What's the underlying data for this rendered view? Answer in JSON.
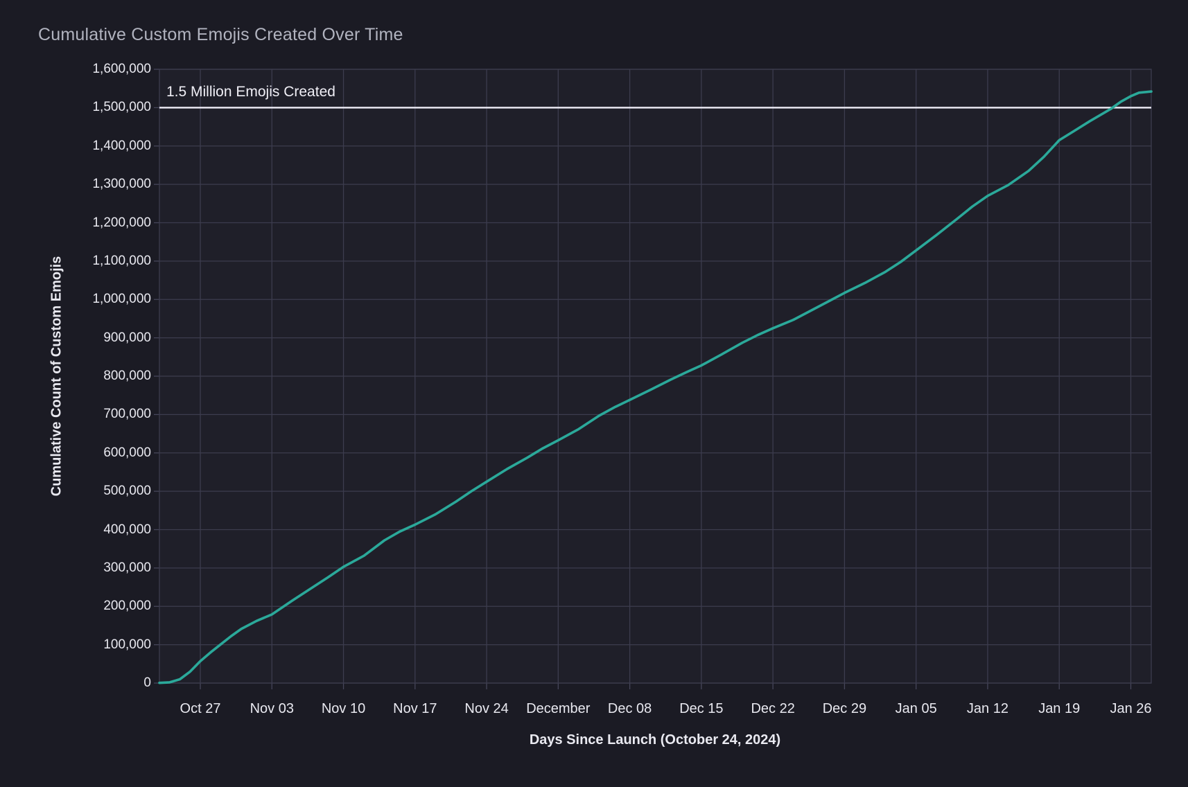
{
  "page": {
    "title": "Cumulative Custom Emojis Created Over Time"
  },
  "colors": {
    "background": "#1b1b24",
    "plot_background": "#1f1f29",
    "grid": "#3c3c4e",
    "plot_border": "#46465a",
    "series_line": "#2ba99a",
    "reference_line": "#e8e6f0",
    "title_text": "#b1b3bf",
    "tick_text": "#e9e9f0",
    "axis_title_text": "#e9e9f0",
    "annotation_text": "#f0eff6"
  },
  "chart_data": {
    "type": "line",
    "title": "Cumulative Custom Emojis Created Over Time",
    "xlabel": "Days Since Launch (October 24, 2024)",
    "ylabel": "Cumulative Count of Custom Emojis",
    "grid": true,
    "legend": "none",
    "ylim": [
      0,
      1600000
    ],
    "x_domain_days": [
      -1,
      96
    ],
    "y_ticks": [
      {
        "value": 0,
        "label": "0"
      },
      {
        "value": 100000,
        "label": "100,000"
      },
      {
        "value": 200000,
        "label": "200,000"
      },
      {
        "value": 300000,
        "label": "300,000"
      },
      {
        "value": 400000,
        "label": "400,000"
      },
      {
        "value": 500000,
        "label": "500,000"
      },
      {
        "value": 600000,
        "label": "600,000"
      },
      {
        "value": 700000,
        "label": "700,000"
      },
      {
        "value": 800000,
        "label": "800,000"
      },
      {
        "value": 900000,
        "label": "900,000"
      },
      {
        "value": 1000000,
        "label": "1,000,000"
      },
      {
        "value": 1100000,
        "label": "1,100,000"
      },
      {
        "value": 1200000,
        "label": "1,200,000"
      },
      {
        "value": 1300000,
        "label": "1,300,000"
      },
      {
        "value": 1400000,
        "label": "1,400,000"
      },
      {
        "value": 1500000,
        "label": "1,500,000"
      },
      {
        "value": 1600000,
        "label": "1,600,000"
      }
    ],
    "x_ticks": [
      {
        "day": 3,
        "label": "Oct 27"
      },
      {
        "day": 10,
        "label": "Nov 03"
      },
      {
        "day": 17,
        "label": "Nov 10"
      },
      {
        "day": 24,
        "label": "Nov 17"
      },
      {
        "day": 31,
        "label": "Nov 24"
      },
      {
        "day": 38,
        "label": "December"
      },
      {
        "day": 45,
        "label": "Dec 08"
      },
      {
        "day": 52,
        "label": "Dec 15"
      },
      {
        "day": 59,
        "label": "Dec 22"
      },
      {
        "day": 66,
        "label": "Dec 29"
      },
      {
        "day": 73,
        "label": "Jan 05"
      },
      {
        "day": 80,
        "label": "Jan 12"
      },
      {
        "day": 87,
        "label": "Jan 19"
      },
      {
        "day": 94,
        "label": "Jan 26"
      }
    ],
    "reference_line": {
      "value": 1500000,
      "label": "1.5 Million Emojis Created"
    },
    "series": [
      {
        "name": "Cumulative Custom Emojis",
        "points": [
          [
            -1,
            500
          ],
          [
            0,
            2000
          ],
          [
            1,
            10000
          ],
          [
            2,
            30000
          ],
          [
            3,
            57000
          ],
          [
            4,
            80000
          ],
          [
            5,
            101000
          ],
          [
            6,
            122000
          ],
          [
            7,
            141000
          ],
          [
            8.5,
            162000
          ],
          [
            10,
            179000
          ],
          [
            12,
            215000
          ],
          [
            14,
            250000
          ],
          [
            15.5,
            276000
          ],
          [
            17,
            303000
          ],
          [
            19,
            332000
          ],
          [
            21,
            372000
          ],
          [
            22.5,
            395000
          ],
          [
            24,
            413000
          ],
          [
            26,
            440000
          ],
          [
            28,
            473000
          ],
          [
            29.5,
            500000
          ],
          [
            31,
            525000
          ],
          [
            33,
            558000
          ],
          [
            35,
            588000
          ],
          [
            36.5,
            612000
          ],
          [
            38,
            633000
          ],
          [
            40,
            662000
          ],
          [
            42,
            697000
          ],
          [
            43.5,
            719000
          ],
          [
            45,
            738000
          ],
          [
            47,
            764000
          ],
          [
            49,
            791000
          ],
          [
            50.5,
            810000
          ],
          [
            52,
            828000
          ],
          [
            54,
            857000
          ],
          [
            56,
            887000
          ],
          [
            57.5,
            907000
          ],
          [
            59,
            925000
          ],
          [
            61,
            947000
          ],
          [
            63,
            975000
          ],
          [
            64.5,
            996000
          ],
          [
            66,
            1017000
          ],
          [
            68,
            1043000
          ],
          [
            70,
            1072000
          ],
          [
            71.5,
            1098000
          ],
          [
            73,
            1128000
          ],
          [
            75,
            1168000
          ],
          [
            77,
            1210000
          ],
          [
            78.5,
            1242000
          ],
          [
            80,
            1270000
          ],
          [
            82,
            1298000
          ],
          [
            84,
            1335000
          ],
          [
            85.5,
            1372000
          ],
          [
            87,
            1415000
          ],
          [
            88.5,
            1440000
          ],
          [
            90,
            1465000
          ],
          [
            92,
            1496000
          ],
          [
            93,
            1515000
          ],
          [
            94,
            1530000
          ],
          [
            94.8,
            1539000
          ],
          [
            96,
            1542000
          ]
        ]
      }
    ]
  }
}
